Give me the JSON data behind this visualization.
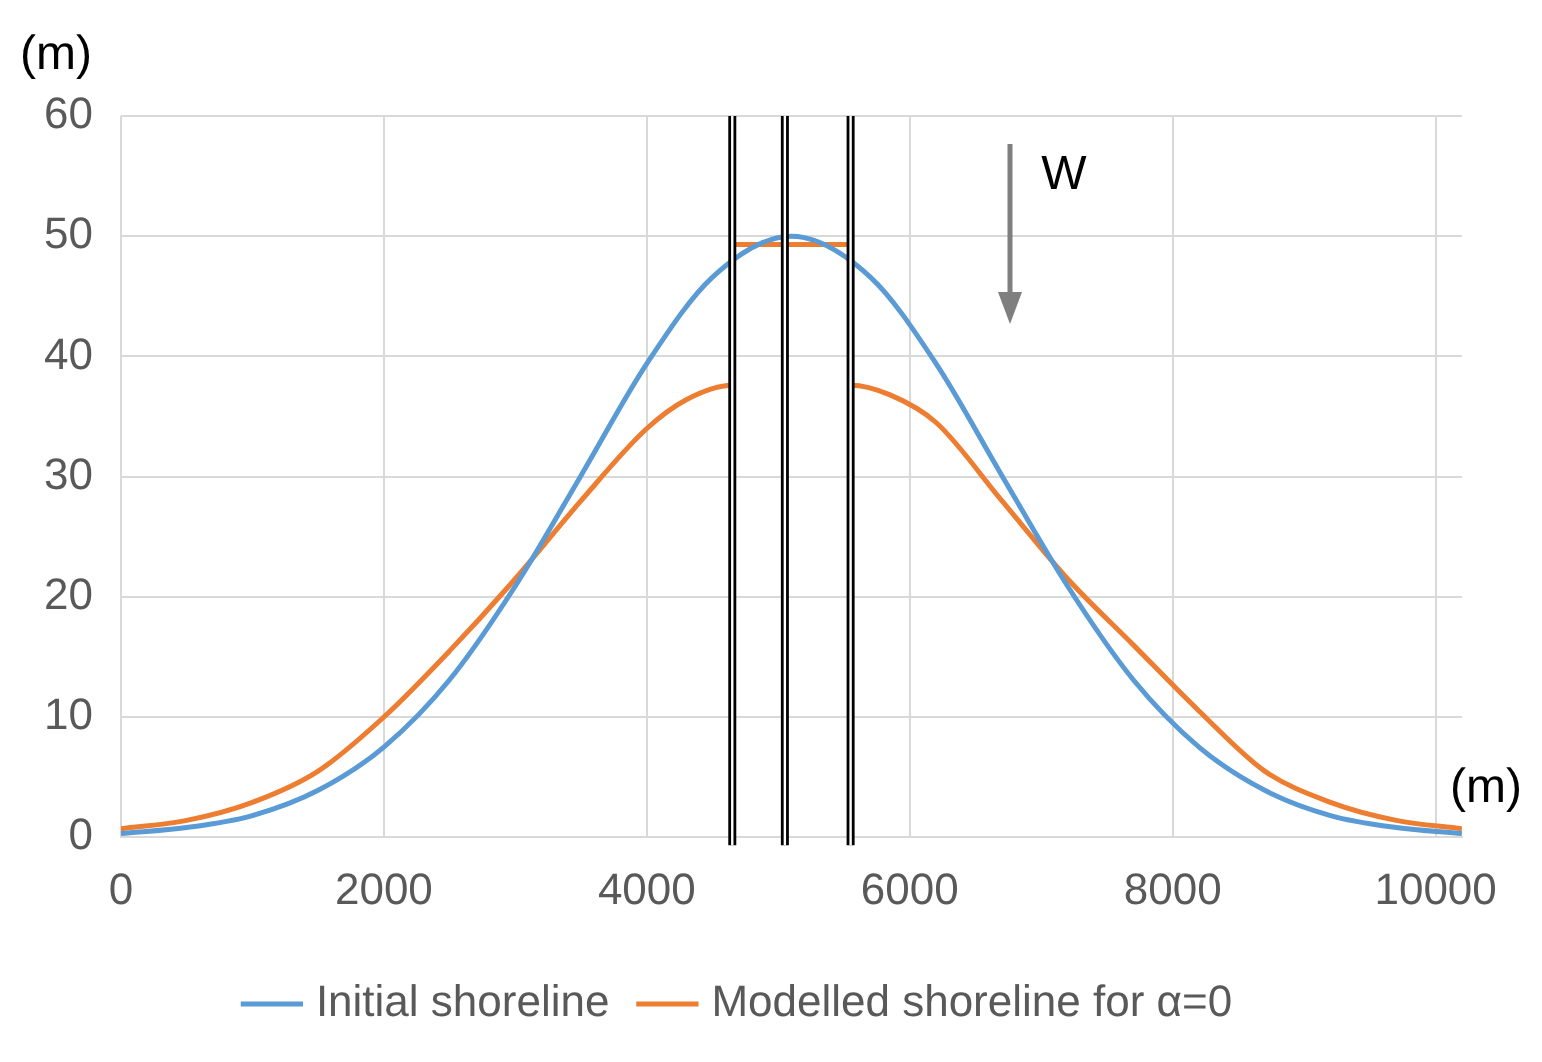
{
  "chart_data": {
    "type": "line",
    "xlabel": "(m)",
    "ylabel": "(m)",
    "xlim": [
      0,
      10200
    ],
    "xticks": [
      0,
      2000,
      4000,
      6000,
      8000,
      10000
    ],
    "ylim": [
      0,
      60
    ],
    "yticks": [
      0,
      10,
      20,
      30,
      40,
      50,
      60
    ],
    "grid": true,
    "legend": "bottom",
    "marker": "none",
    "line_style": "solid",
    "series": [
      {
        "name": "Initial shoreline",
        "color": "#5b9bd5",
        "x": [
          0,
          500,
          1000,
          1500,
          2000,
          2500,
          3000,
          3500,
          4000,
          4500,
          5100,
          5700,
          6200,
          6700,
          7200,
          7700,
          8200,
          8700,
          9200,
          9700,
          10200
        ],
        "values": [
          0.3,
          0.8,
          1.8,
          3.9,
          7.5,
          13.1,
          20.9,
          30.1,
          39.4,
          46.6,
          50,
          46.6,
          39.4,
          30.1,
          20.9,
          13.1,
          7.5,
          3.9,
          1.8,
          0.8,
          0.3
        ]
      },
      {
        "name": "Modelled shoreline for α=0",
        "color": "#ed7d31",
        "x": [
          0,
          500,
          1000,
          1500,
          2000,
          2500,
          3000,
          3500,
          4000,
          4300,
          4650,
          4650,
          5550,
          5550,
          5850,
          6200,
          6700,
          7200,
          7700,
          8200,
          8700,
          9200,
          9700,
          10200
        ],
        "values": [
          0.7,
          1.4,
          2.9,
          5.5,
          10,
          15.5,
          21.5,
          28,
          34,
          36.4,
          37.6,
          49.3,
          49.3,
          37.6,
          36.8,
          34.5,
          28,
          21.5,
          16,
          10.5,
          5.5,
          2.9,
          1.4,
          0.7
        ]
      }
    ],
    "ref_lines": [
      {
        "axis": "x",
        "value": 4650,
        "color": "#000000"
      },
      {
        "axis": "x",
        "value": 5050,
        "color": "#000000"
      },
      {
        "axis": "x",
        "value": 5550,
        "color": "#000000"
      }
    ],
    "annotations": [
      "W"
    ]
  }
}
